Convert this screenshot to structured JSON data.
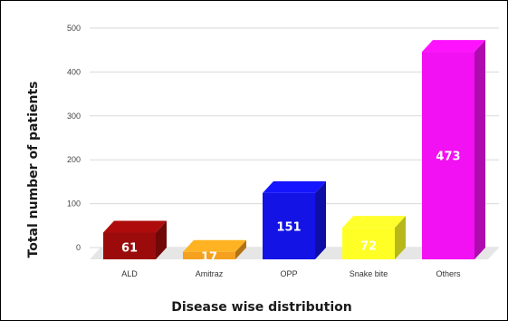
{
  "chart_data": {
    "type": "bar",
    "title": "",
    "xlabel": "Disease wise distribution",
    "ylabel": "Total number of patients",
    "categories": [
      "ALD",
      "Amitraz",
      "OPP",
      "Snake bite",
      "Others"
    ],
    "values": [
      61,
      17,
      151,
      72,
      473
    ],
    "data_labels": [
      "61",
      "17",
      "151",
      "72",
      "473"
    ],
    "yticks": [
      0,
      100,
      200,
      300,
      400,
      500
    ],
    "ylim": [
      0,
      500
    ],
    "grid": true,
    "legend": "none",
    "colors": [
      "#9b0b0b",
      "#f5a01e",
      "#1313e6",
      "#ffff26",
      "#f211f2"
    ],
    "label_colors": [
      "#ffffff",
      "#ffffff",
      "#ffffff",
      "#ffffff",
      "#ffffff"
    ]
  }
}
